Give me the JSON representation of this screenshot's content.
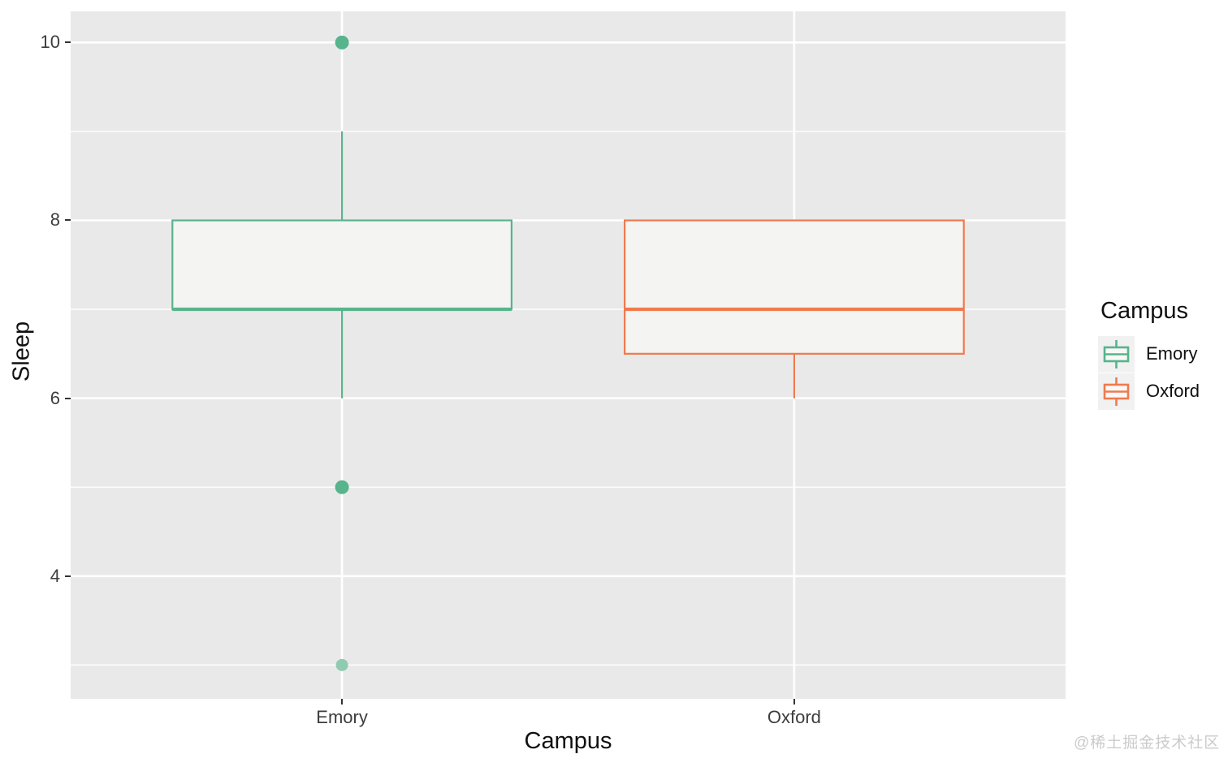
{
  "watermark": "@稀土掘金技术社区",
  "chart_data": {
    "type": "boxplot",
    "title": "",
    "xlabel": "Campus",
    "ylabel": "Sleep",
    "categories": [
      "Emory",
      "Oxford"
    ],
    "ylim": [
      2.62,
      10.35
    ],
    "yticks_major": [
      4,
      6,
      8,
      10
    ],
    "yticks_minor": [
      3,
      5,
      7,
      9
    ],
    "grid": "on",
    "panel_bg": "#E9E9E9",
    "grid_color": "#FFFFFF",
    "box_fill": "#F4F4F2",
    "legend": {
      "title": "Campus",
      "position": "right",
      "entries": [
        "Emory",
        "Oxford"
      ]
    },
    "series": [
      {
        "name": "Emory",
        "color": "#57B48D",
        "light_color": "#8FCBB0",
        "stats": {
          "whisker_low": 6,
          "q1": 7,
          "median": 7,
          "q3": 8,
          "whisker_high": 9
        },
        "outliers": [
          {
            "value": 10,
            "muted": false
          },
          {
            "value": 5,
            "muted": false
          },
          {
            "value": 3,
            "muted": true
          }
        ]
      },
      {
        "name": "Oxford",
        "color": "#EF7A4E",
        "light_color": "#F5AE91",
        "stats": {
          "whisker_low": 6,
          "q1": 6.5,
          "median": 7,
          "q3": 8,
          "whisker_high": 8
        },
        "outliers": []
      }
    ]
  }
}
